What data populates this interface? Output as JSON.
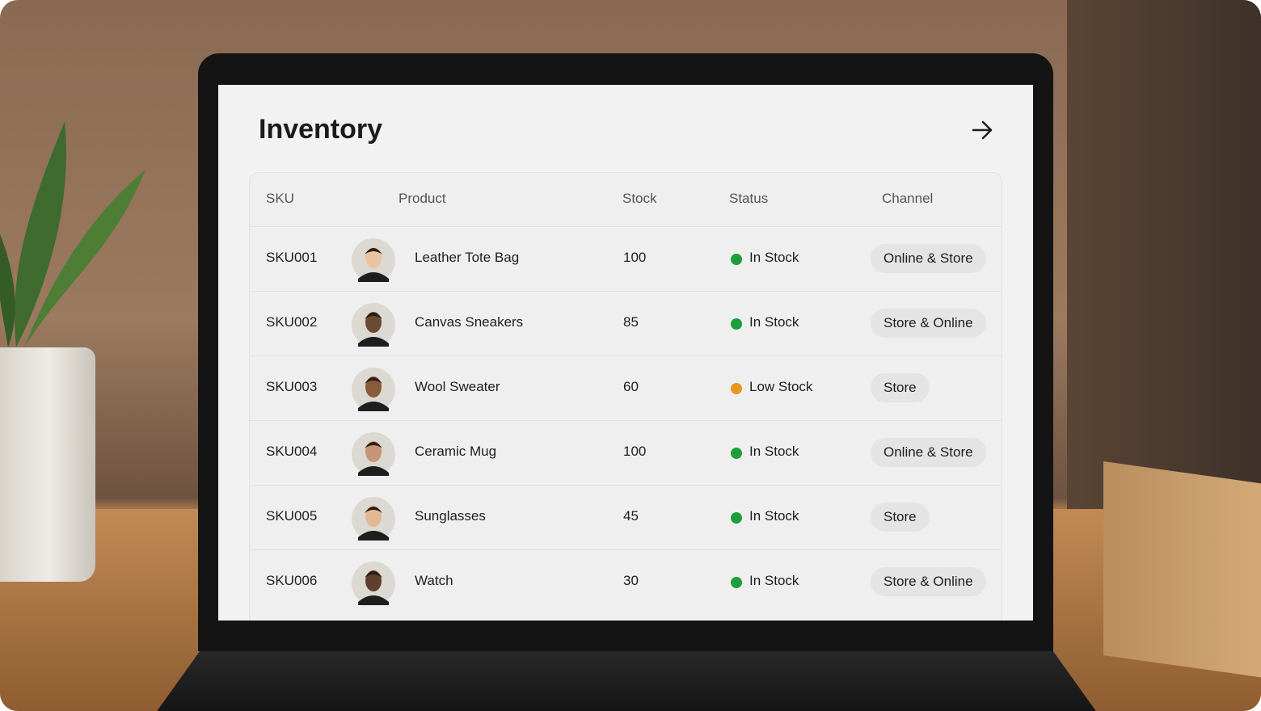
{
  "header": {
    "title": "Inventory"
  },
  "table": {
    "columns": [
      "SKU",
      "Product",
      "Stock",
      "Status",
      "Channel"
    ],
    "rows": [
      {
        "sku": "SKU001",
        "product": "Leather Tote Bag",
        "stock": "100",
        "status": "In Stock",
        "status_color": "#1e9e3a",
        "channel": "Online & Store"
      },
      {
        "sku": "SKU002",
        "product": "Canvas Sneakers",
        "stock": "85",
        "status": "In Stock",
        "status_color": "#1e9e3a",
        "channel": "Store & Online"
      },
      {
        "sku": "SKU003",
        "product": "Wool Sweater",
        "stock": "60",
        "status": "Low Stock",
        "status_color": "#e8951c",
        "channel": "Store"
      },
      {
        "sku": "SKU004",
        "product": "Ceramic Mug",
        "stock": "100",
        "status": "In Stock",
        "status_color": "#1e9e3a",
        "channel": "Online & Store"
      },
      {
        "sku": "SKU005",
        "product": "Sunglasses",
        "stock": "45",
        "status": "In Stock",
        "status_color": "#1e9e3a",
        "channel": "Store"
      },
      {
        "sku": "SKU006",
        "product": "Watch",
        "stock": "30",
        "status": "In Stock",
        "status_color": "#1e9e3a",
        "channel": "Store & Online"
      }
    ]
  }
}
